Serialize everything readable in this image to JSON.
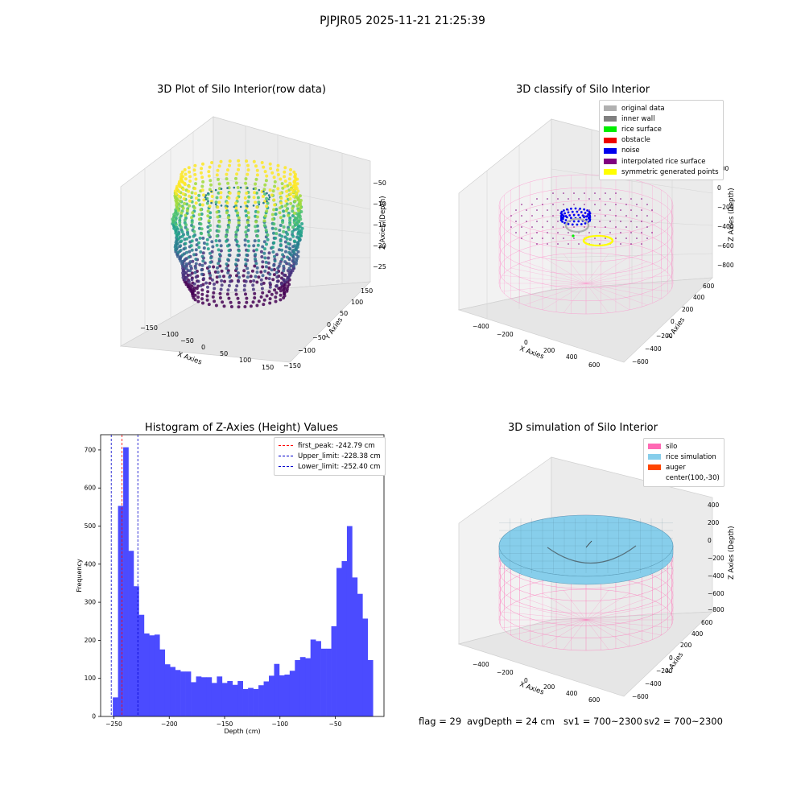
{
  "suptitle": "PJPJR05 2025-11-21 21:25:39",
  "panel1": {
    "title": "3D Plot of Silo Interior(row data)",
    "xlabel": "X Axies",
    "ylabel": "Y Axies",
    "zlabel": "Z Axies (Depth)",
    "xticks": [
      "−150",
      "−100",
      "−50",
      "0",
      "50",
      "100",
      "150"
    ],
    "yticks": [
      "−150",
      "−100",
      "−50",
      "0",
      "50",
      "100",
      "150"
    ],
    "zticks": [
      "−50",
      "−100",
      "−150",
      "−200",
      "−250"
    ]
  },
  "panel2": {
    "title": "3D classify of Silo Interior",
    "xlabel": "X Axies",
    "ylabel": "Y Axies",
    "zlabel": "Z Axies (Depth)",
    "xticks": [
      "−400",
      "−200",
      "0",
      "200",
      "400",
      "600"
    ],
    "yticks": [
      "−600",
      "−400",
      "−200",
      "0",
      "200",
      "400",
      "600"
    ],
    "zticks": [
      "200",
      "0",
      "−200",
      "−400",
      "−600",
      "−800"
    ],
    "legend": [
      {
        "label": "original data",
        "color": "#b0b0b0"
      },
      {
        "label": "inner wall",
        "color": "#808080"
      },
      {
        "label": "rice surface",
        "color": "#00ee00"
      },
      {
        "label": "obstacle",
        "color": "#ee0000"
      },
      {
        "label": "noise",
        "color": "#0000ee"
      },
      {
        "label": "interpolated rice surface",
        "color": "#800080"
      },
      {
        "label": "symmetric generated points",
        "color": "#ffff00"
      }
    ]
  },
  "panel3": {
    "title": "Histogram of Z-Axies (Height) Values",
    "xlabel": "Depth (cm)",
    "ylabel": "Frequency",
    "legend": [
      {
        "label": "first_peak: -242.79 cm",
        "color": "#ff0000"
      },
      {
        "label": "Upper_limit: -228.38 cm",
        "color": "#0000cc"
      },
      {
        "label": "Lower_limit: -252.40 cm",
        "color": "#0000cc"
      }
    ]
  },
  "panel4": {
    "title": "3D simulation of Silo Interior",
    "xlabel": "X Axies",
    "ylabel": "Y Axies",
    "zlabel": "Z Axies (Depth)",
    "xticks": [
      "−400",
      "−200",
      "0",
      "200",
      "400",
      "600"
    ],
    "yticks": [
      "−600",
      "−400",
      "−200",
      "0",
      "200",
      "400",
      "600"
    ],
    "zticks": [
      "400",
      "200",
      "0",
      "−200",
      "−400",
      "−600",
      "−800"
    ],
    "legend": [
      {
        "label": "silo",
        "color": "#ff69b4"
      },
      {
        "label": "rice simulation",
        "color": "#87ceeb"
      },
      {
        "label": "auger",
        "color": "#ff4500"
      },
      {
        "label": "center(100,-30)",
        "color": ""
      }
    ]
  },
  "status": {
    "flag": "flag = 29",
    "avg_depth": "avgDepth = 24 cm",
    "sv1": "sv1 = 700~2300",
    "sv2": "sv2 = 700~2300"
  },
  "chart_data": [
    {
      "type": "scatter",
      "title": "3D Plot of Silo Interior(row data)",
      "projection": "3d",
      "xlabel": "X Axies",
      "ylabel": "Y Axies",
      "zlabel": "Z Axies (Depth)",
      "xlim": [
        -175,
        160
      ],
      "ylim": [
        -160,
        165
      ],
      "zlim": [
        -270,
        -20
      ],
      "colormap": "viridis"
    },
    {
      "type": "scatter",
      "title": "3D classify of Silo Interior",
      "projection": "3d",
      "xlim": [
        -500,
        700
      ],
      "ylim": [
        -650,
        650
      ],
      "zlim": [
        -900,
        300
      ]
    },
    {
      "type": "bar",
      "title": "Histogram of Z-Axies (Height) Values",
      "xlabel": "Depth (cm)",
      "ylabel": "Frequency",
      "xlim": [
        -262,
        -6
      ],
      "ylim": [
        0,
        740
      ],
      "xticks": [
        -250,
        -200,
        -150,
        -100,
        -50
      ],
      "yticks": [
        0,
        100,
        200,
        300,
        400,
        500,
        600,
        700
      ],
      "bar_color": "#4b4bff",
      "bin_start": -251,
      "bin_width": 4.7,
      "values": [
        50,
        553,
        707,
        435,
        342,
        267,
        218,
        213,
        215,
        176,
        137,
        130,
        122,
        118,
        118,
        90,
        105,
        103,
        103,
        88,
        105,
        88,
        93,
        83,
        93,
        72,
        75,
        72,
        82,
        92,
        107,
        138,
        108,
        110,
        120,
        148,
        156,
        153,
        202,
        198,
        178,
        178,
        237,
        390,
        408,
        500,
        365,
        322,
        257,
        148
      ],
      "vlines": [
        {
          "x": -242.79,
          "color": "#ff0000",
          "label": "first_peak: -242.79 cm"
        },
        {
          "x": -228.38,
          "color": "#0000cc",
          "label": "Upper_limit: -228.38 cm"
        },
        {
          "x": -252.4,
          "color": "#0000cc",
          "label": "Lower_limit: -252.40 cm"
        }
      ],
      "legend_position": "top-right",
      "grid": false
    },
    {
      "type": "area",
      "title": "3D simulation of Silo Interior",
      "projection": "3d",
      "xlim": [
        -500,
        700
      ],
      "ylim": [
        -650,
        650
      ],
      "zlim": [
        -900,
        450
      ]
    }
  ]
}
